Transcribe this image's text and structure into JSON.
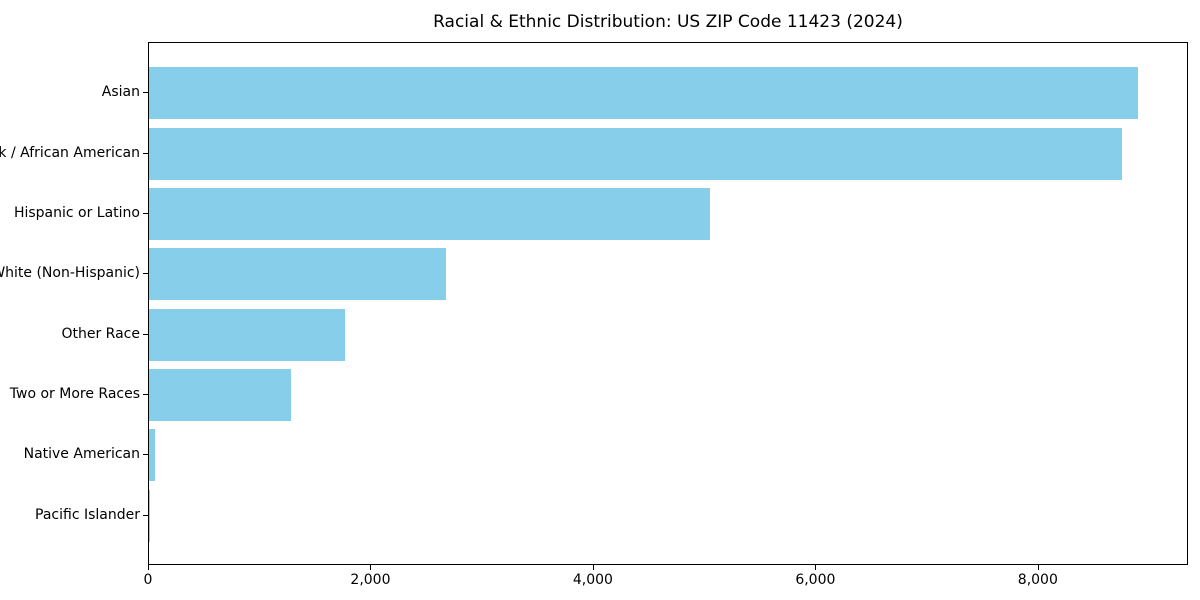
{
  "chart_data": {
    "type": "bar",
    "orientation": "horizontal",
    "title": "Racial & Ethnic Distribution: US ZIP Code 11423 (2024)",
    "categories": [
      "Asian",
      "Black / African American",
      "Hispanic or Latino",
      "White (Non-Hispanic)",
      "Other Race",
      "Two or More Races",
      "Native American",
      "Pacific Islander"
    ],
    "values": [
      8890,
      8750,
      5040,
      2670,
      1760,
      1280,
      50,
      8
    ],
    "xlabel": "",
    "ylabel": "",
    "xlim": [
      0,
      9350
    ],
    "x_ticks": [
      {
        "value": 0,
        "label": "0"
      },
      {
        "value": 2000,
        "label": "2,000"
      },
      {
        "value": 4000,
        "label": "4,000"
      },
      {
        "value": 6000,
        "label": "6,000"
      },
      {
        "value": 8000,
        "label": "8,000"
      }
    ],
    "grid": false,
    "legend_position": "none",
    "colors": {
      "bar": "#87CEEB",
      "axis": "#000000",
      "text": "#000000",
      "background": "#ffffff"
    }
  }
}
